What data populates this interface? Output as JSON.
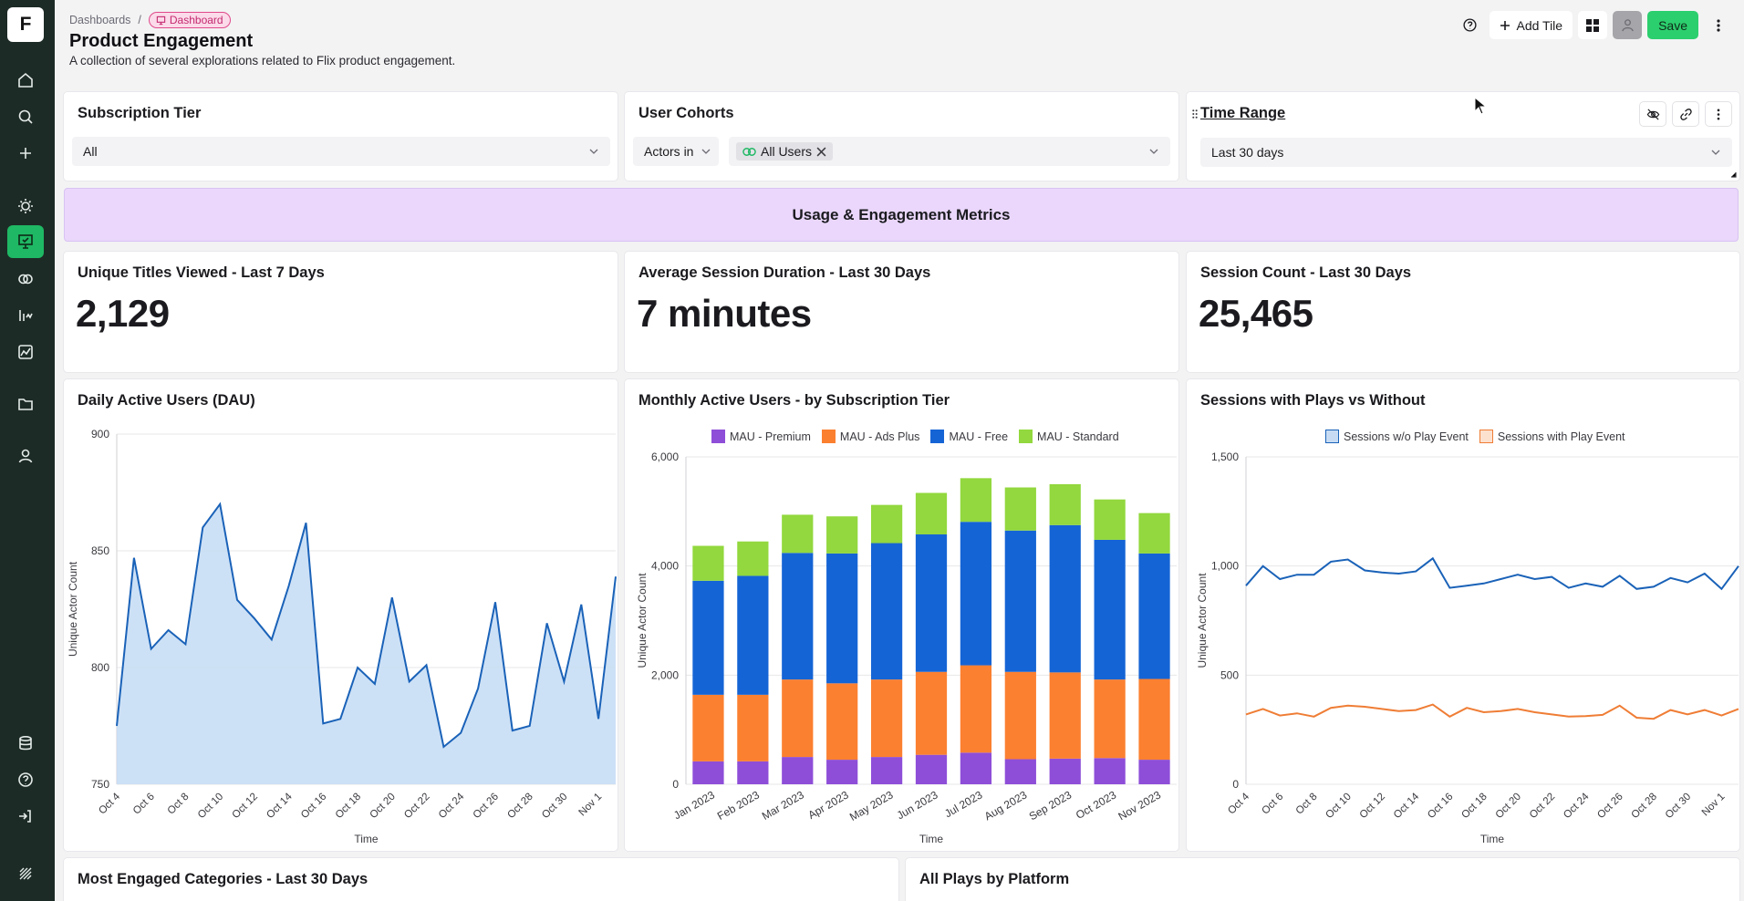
{
  "app": {
    "logo": "F"
  },
  "breadcrumb": {
    "parent": "Dashboards",
    "separator": "/",
    "current": "Dashboard"
  },
  "header": {
    "title": "Product Engagement",
    "subtitle": "A collection of several explorations related to Flix product engagement.",
    "add_tile_label": "Add Tile",
    "save_label": "Save"
  },
  "sidebar": {
    "items": [
      {
        "name": "home-icon"
      },
      {
        "name": "search-icon"
      },
      {
        "name": "plus-icon"
      },
      {
        "name": "lightbulb-icon"
      },
      {
        "name": "dashboard-icon",
        "active": true
      },
      {
        "name": "cohorts-icon"
      },
      {
        "name": "metrics-icon"
      },
      {
        "name": "chart-icon"
      },
      {
        "name": "folder-icon"
      },
      {
        "name": "user-icon"
      },
      {
        "name": "database-icon"
      },
      {
        "name": "help-icon"
      },
      {
        "name": "logout-icon"
      },
      {
        "name": "brand-icon"
      }
    ]
  },
  "filters": {
    "subscription_tier": {
      "title": "Subscription Tier",
      "value": "All"
    },
    "user_cohorts": {
      "title": "User Cohorts",
      "operator": "Actors in",
      "value": "All Users"
    },
    "time_range": {
      "title": "Time Range",
      "value": "Last 30 days"
    }
  },
  "section_banner": "Usage & Engagement Metrics",
  "metrics": [
    {
      "title": "Unique Titles Viewed - Last 7 Days",
      "value": "2,129"
    },
    {
      "title": "Average Session Duration - Last 30 Days",
      "value": "7 minutes"
    },
    {
      "title": "Session Count - Last 30 Days",
      "value": "25,465"
    }
  ],
  "charts": {
    "dau_title": "Daily Active Users (DAU)",
    "mau_title": "Monthly Active Users - by Subscription Tier",
    "sessions_title": "Sessions with Plays vs Without"
  },
  "bottom": {
    "categories_title": "Most Engaged Categories - Last 30 Days",
    "platform_title": "All Plays by Platform"
  },
  "colors": {
    "brand_green": "#2ccf6e",
    "sidebar_bg": "#1d2b26",
    "premium": "#8e4ed8",
    "ads_plus": "#fb8030",
    "free": "#1564d5",
    "standard": "#92d83e",
    "line_blue": "#1a62b8",
    "line_orange": "#ef7d35"
  },
  "chart_data": [
    {
      "type": "area",
      "title": "Daily Active Users (DAU)",
      "xlabel": "Time",
      "ylabel": "Unique Actor Count",
      "ylim": [
        750,
        900
      ],
      "yticks": [
        "750",
        "800",
        "850",
        "900"
      ],
      "x_tick_labels": [
        "Oct 4",
        "Oct 6",
        "Oct 8",
        "Oct 10",
        "Oct 12",
        "Oct 14",
        "Oct 16",
        "Oct 18",
        "Oct 20",
        "Oct 22",
        "Oct 24",
        "Oct 26",
        "Oct 28",
        "Oct 30",
        "Nov 1"
      ],
      "values": [
        775,
        847,
        808,
        816,
        810,
        860,
        870,
        829,
        821,
        812,
        835,
        862,
        776,
        778,
        800,
        793,
        830,
        794,
        801,
        766,
        772,
        791,
        828,
        773,
        775,
        819,
        794,
        827,
        778,
        839
      ]
    },
    {
      "type": "bar",
      "stacked": true,
      "title": "Monthly Active Users - by Subscription Tier",
      "xlabel": "Time",
      "ylabel": "Unique Actor Count",
      "ylim": [
        0,
        6000
      ],
      "yticks": [
        "0",
        "2,000",
        "4,000",
        "6,000"
      ],
      "categories": [
        "Jan 2023",
        "Feb 2023",
        "Mar 2023",
        "Apr 2023",
        "May 2023",
        "Jun 2023",
        "Jul 2023",
        "Aug 2023",
        "Sep 2023",
        "Oct 2023",
        "Nov 2023"
      ],
      "series": [
        {
          "name": "MAU - Premium",
          "values": [
            420,
            420,
            500,
            450,
            500,
            540,
            580,
            460,
            470,
            480,
            450
          ]
        },
        {
          "name": "MAU - Ads Plus",
          "values": [
            1220,
            1220,
            1420,
            1400,
            1420,
            1520,
            1600,
            1600,
            1580,
            1440,
            1480
          ]
        },
        {
          "name": "MAU - Free",
          "values": [
            2090,
            2180,
            2320,
            2380,
            2500,
            2520,
            2630,
            2590,
            2700,
            2560,
            2300
          ]
        },
        {
          "name": "MAU - Standard",
          "values": [
            640,
            630,
            700,
            680,
            700,
            760,
            800,
            790,
            750,
            740,
            740
          ]
        }
      ]
    },
    {
      "type": "line",
      "title": "Sessions with Plays vs Without",
      "xlabel": "Time",
      "ylabel": "Unique Actor Count",
      "ylim": [
        0,
        1500
      ],
      "yticks": [
        "0",
        "500",
        "1,000",
        "1,500"
      ],
      "x_tick_labels": [
        "Oct 4",
        "Oct 6",
        "Oct 8",
        "Oct 10",
        "Oct 12",
        "Oct 14",
        "Oct 16",
        "Oct 18",
        "Oct 20",
        "Oct 22",
        "Oct 24",
        "Oct 26",
        "Oct 28",
        "Oct 30",
        "Nov 1"
      ],
      "series": [
        {
          "name": "Sessions w/o Play Event",
          "values": [
            910,
            1000,
            940,
            960,
            960,
            1020,
            1030,
            980,
            970,
            965,
            975,
            1035,
            900,
            910,
            920,
            940,
            960,
            940,
            950,
            900,
            920,
            905,
            955,
            895,
            905,
            945,
            925,
            965,
            895,
            1000
          ]
        },
        {
          "name": "Sessions with Play Event",
          "values": [
            320,
            345,
            315,
            325,
            310,
            350,
            360,
            355,
            345,
            335,
            340,
            365,
            310,
            350,
            330,
            335,
            345,
            330,
            320,
            310,
            312,
            318,
            360,
            305,
            300,
            340,
            320,
            340,
            315,
            345
          ]
        }
      ]
    }
  ]
}
